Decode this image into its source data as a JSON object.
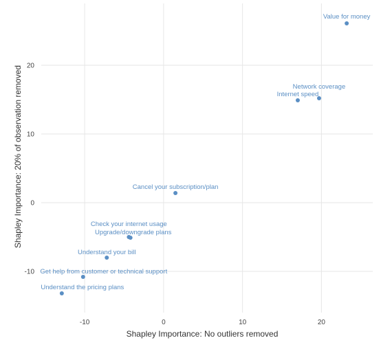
{
  "chart_data": {
    "type": "scatter",
    "xlabel": "Shapley Importance: No outliers removed",
    "ylabel": "Shapley Importance: 20% of observation removed",
    "xlim": [
      -15.5,
      26.5
    ],
    "ylim": [
      -16,
      29
    ],
    "x_ticks": [
      -10,
      0,
      10,
      20
    ],
    "y_ticks": [
      -10,
      0,
      10,
      20
    ],
    "grid": true,
    "color": "#5b8fc4",
    "points": [
      {
        "label": "Value for money",
        "x": 23.2,
        "y": 26.1
      },
      {
        "label": "Network coverage",
        "x": 19.7,
        "y": 15.2
      },
      {
        "label": "Internet speed",
        "x": 17.0,
        "y": 14.9
      },
      {
        "label": "Cancel your subscription/plan",
        "x": 1.5,
        "y": 1.4
      },
      {
        "label": "Check your internet usage",
        "x": -4.4,
        "y": -5.0
      },
      {
        "label": "Upgrade/downgrade plans",
        "x": -4.2,
        "y": -5.1
      },
      {
        "label": "Understand your bill",
        "x": -7.2,
        "y": -8.0
      },
      {
        "label": "Get help from customer or technical support",
        "x": -10.2,
        "y": -10.8
      },
      {
        "label": "Understand the pricing plans",
        "x": -12.9,
        "y": -13.2
      }
    ]
  }
}
